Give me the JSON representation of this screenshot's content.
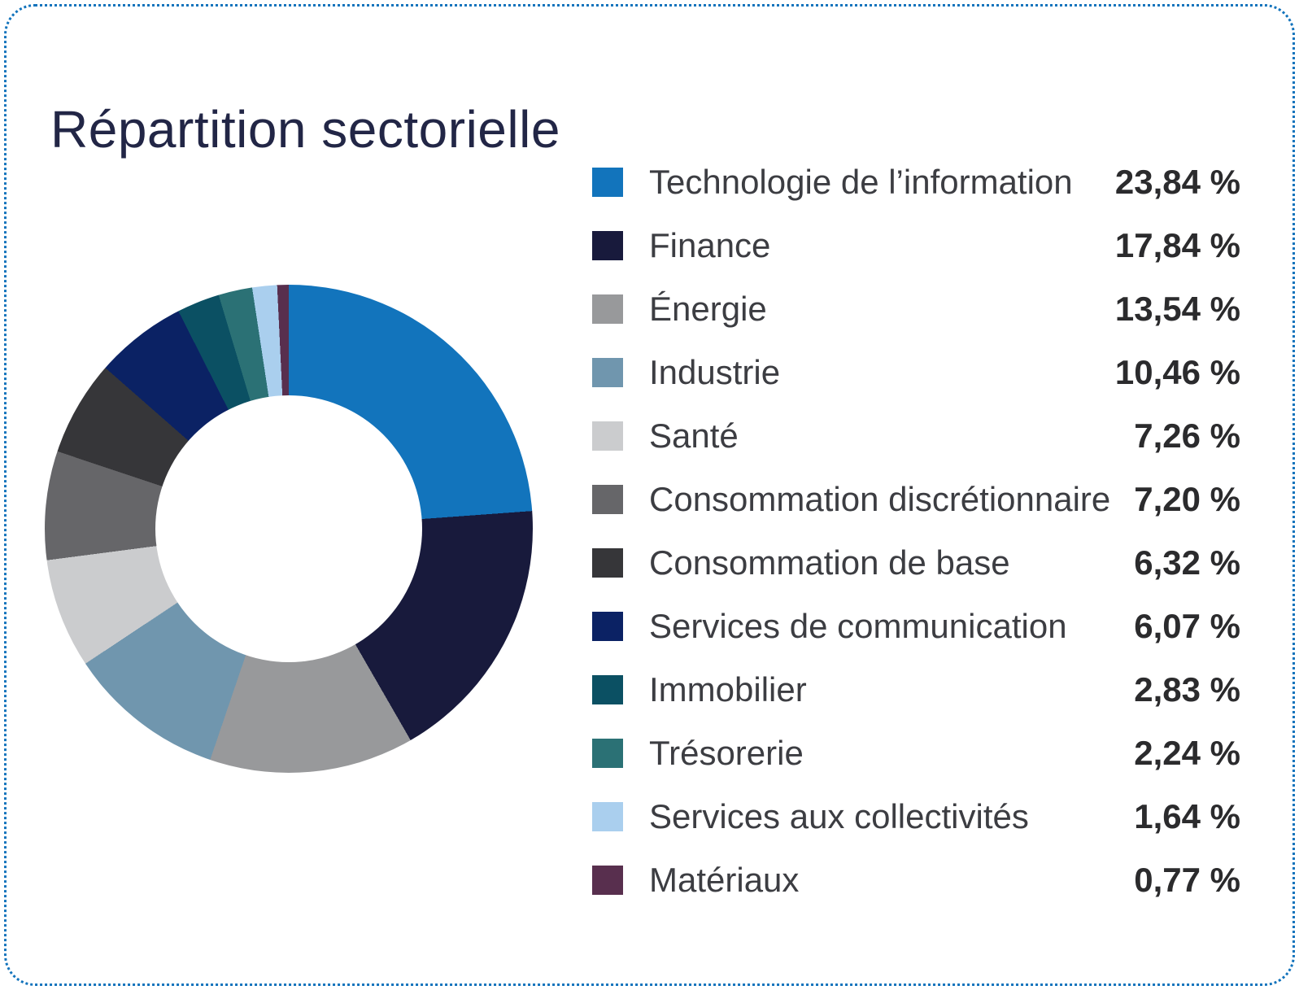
{
  "theme": {
    "accent_border_dots": "#1273BC",
    "title_text": "#222646",
    "label_text": "#3C3D42",
    "value_text": "#2B2B2D",
    "background": "#FFFFFF",
    "donut_hole": "#FFFFFF"
  },
  "chart_data": {
    "type": "pie",
    "variant": "donut",
    "title": "Répartition sectorielle",
    "legend_position": "right",
    "start_angle_deg": 0,
    "direction": "clockwise",
    "hole_ratio": 0.55,
    "value_unit": "%",
    "slices": [
      {
        "label": "Technologie de l’information",
        "value": 23.84,
        "value_display": "23,84 %",
        "color": "#1274BC"
      },
      {
        "label": "Finance",
        "value": 17.84,
        "value_display": "17,84 %",
        "color": "#181A3C"
      },
      {
        "label": "Énergie",
        "value": 13.54,
        "value_display": "13,54 %",
        "color": "#98999B"
      },
      {
        "label": "Industrie",
        "value": 10.46,
        "value_display": "10,46 %",
        "color": "#7096AE"
      },
      {
        "label": "Santé",
        "value": 7.26,
        "value_display": "7,26 %",
        "color": "#CBCCCE"
      },
      {
        "label": "Consommation discrétionnaire",
        "value": 7.2,
        "value_display": "7,20 %",
        "color": "#666669"
      },
      {
        "label": "Consommation de base",
        "value": 6.32,
        "value_display": "6,32 %",
        "color": "#363639"
      },
      {
        "label": "Services de communication",
        "value": 6.07,
        "value_display": "6,07 %",
        "color": "#0B2264"
      },
      {
        "label": "Immobilier",
        "value": 2.83,
        "value_display": "2,83 %",
        "color": "#0B5063"
      },
      {
        "label": "Trésorerie",
        "value": 2.24,
        "value_display": "2,24 %",
        "color": "#2B7175"
      },
      {
        "label": "Services aux collectivités",
        "value": 1.64,
        "value_display": "1,64 %",
        "color": "#AACFEE"
      },
      {
        "label": "Matériaux",
        "value": 0.77,
        "value_display": "0,77 %",
        "color": "#582F4E"
      }
    ]
  }
}
